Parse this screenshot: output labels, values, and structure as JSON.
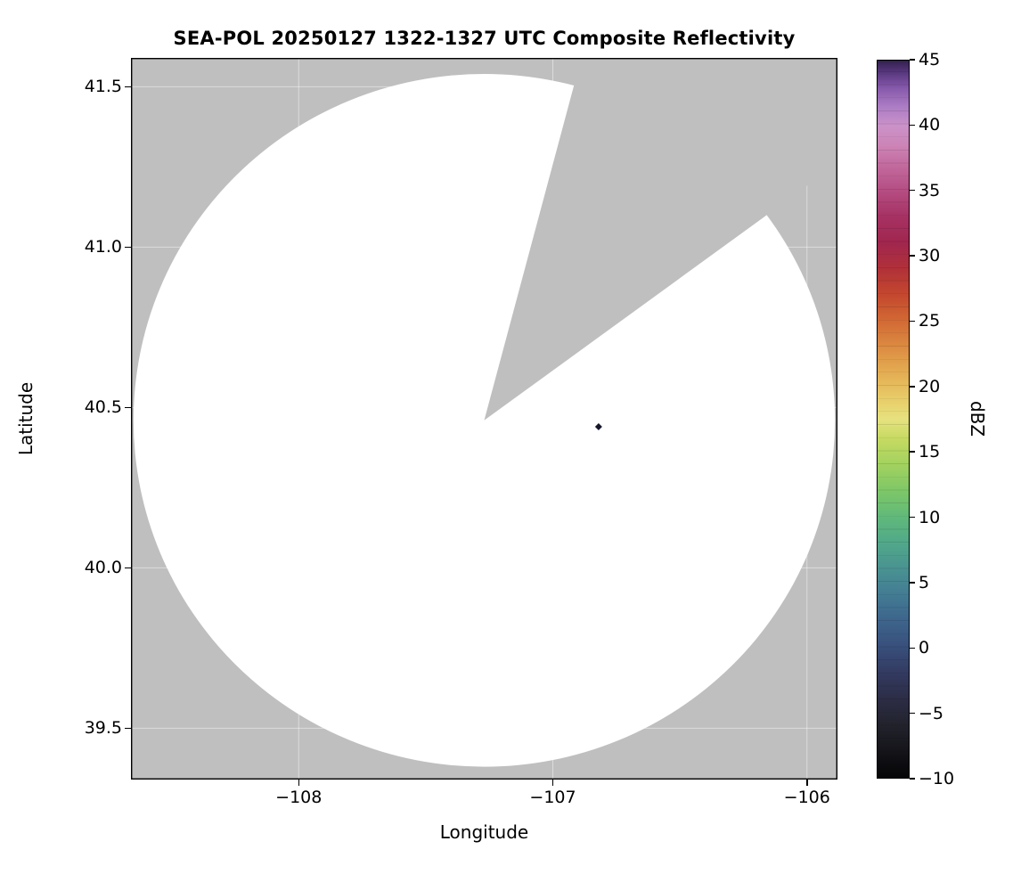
{
  "figure": {
    "background": "#ffffff"
  },
  "chart_data": {
    "type": "heatmap",
    "subtype": "radar-ppi-composite-reflectivity",
    "title": "SEA-POL 20250127 1322-1327 UTC Composite Reflectivity",
    "xlabel": "Longitude",
    "ylabel": "Latitude",
    "xlim": [
      -108.66,
      -105.88
    ],
    "ylim": [
      39.34,
      41.59
    ],
    "grid": true,
    "gridline_color": "rgba(255,255,255,0.45)",
    "plot_bg_outside_scan": "#bfbfbf",
    "scan_area_fill": "#ffffff",
    "frame_color": "#000000",
    "xticks": [
      {
        "value": -108,
        "label": "−108"
      },
      {
        "value": -107,
        "label": "−107"
      },
      {
        "value": -106,
        "label": "−106"
      }
    ],
    "yticks": [
      {
        "value": 39.5,
        "label": "39.5"
      },
      {
        "value": 40.0,
        "label": "40.0"
      },
      {
        "value": 40.5,
        "label": "40.5"
      },
      {
        "value": 41.0,
        "label": "41.0"
      },
      {
        "value": 41.5,
        "label": "41.5"
      }
    ],
    "radar_scan": {
      "center_lon": -107.27,
      "center_lat": 40.46,
      "radius_lon_deg": 1.38,
      "radius_lat_deg": 1.08,
      "blocked_sector_azimuth_deg": [
        15,
        54
      ]
    },
    "echoes": [
      {
        "lon": -106.82,
        "lat": 40.44,
        "color": "#16162b",
        "marker": "diamond"
      }
    ],
    "colorbar": {
      "label": "dBZ",
      "min": -10,
      "max": 45,
      "ticks": [
        {
          "value": -10,
          "label": "−10"
        },
        {
          "value": -5,
          "label": "−5"
        },
        {
          "value": 0,
          "label": "0"
        },
        {
          "value": 5,
          "label": "5"
        },
        {
          "value": 10,
          "label": "10"
        },
        {
          "value": 15,
          "label": "15"
        },
        {
          "value": 20,
          "label": "20"
        },
        {
          "value": 25,
          "label": "25"
        },
        {
          "value": 30,
          "label": "30"
        },
        {
          "value": 35,
          "label": "35"
        },
        {
          "value": 40,
          "label": "40"
        },
        {
          "value": 45,
          "label": "45"
        }
      ],
      "stops": [
        [
          -10,
          "#050507"
        ],
        [
          -8,
          "#141419"
        ],
        [
          -6,
          "#22222c"
        ],
        [
          -4,
          "#2c2d45"
        ],
        [
          -2,
          "#333a60"
        ],
        [
          0,
          "#384f7b"
        ],
        [
          2,
          "#3d648c"
        ],
        [
          4,
          "#437b93"
        ],
        [
          6,
          "#499292"
        ],
        [
          8,
          "#51a88a"
        ],
        [
          10,
          "#60b97a"
        ],
        [
          12,
          "#7ec768"
        ],
        [
          14,
          "#a2d25f"
        ],
        [
          16,
          "#c6da61"
        ],
        [
          17.5,
          "#e6e27f"
        ],
        [
          19,
          "#e8cd69"
        ],
        [
          21,
          "#e4ae53"
        ],
        [
          23,
          "#dc8c42"
        ],
        [
          25,
          "#d26a34"
        ],
        [
          27,
          "#c4482e"
        ],
        [
          29,
          "#b13138"
        ],
        [
          31,
          "#a1264e"
        ],
        [
          33,
          "#a63163"
        ],
        [
          35,
          "#b54d82"
        ],
        [
          37,
          "#c36b9f"
        ],
        [
          38.5,
          "#cd84b6"
        ],
        [
          40,
          "#cb92c9"
        ],
        [
          41.5,
          "#ab7cc4"
        ],
        [
          43,
          "#8356a8"
        ],
        [
          44,
          "#5c3a82"
        ],
        [
          45,
          "#33204f"
        ]
      ]
    }
  }
}
